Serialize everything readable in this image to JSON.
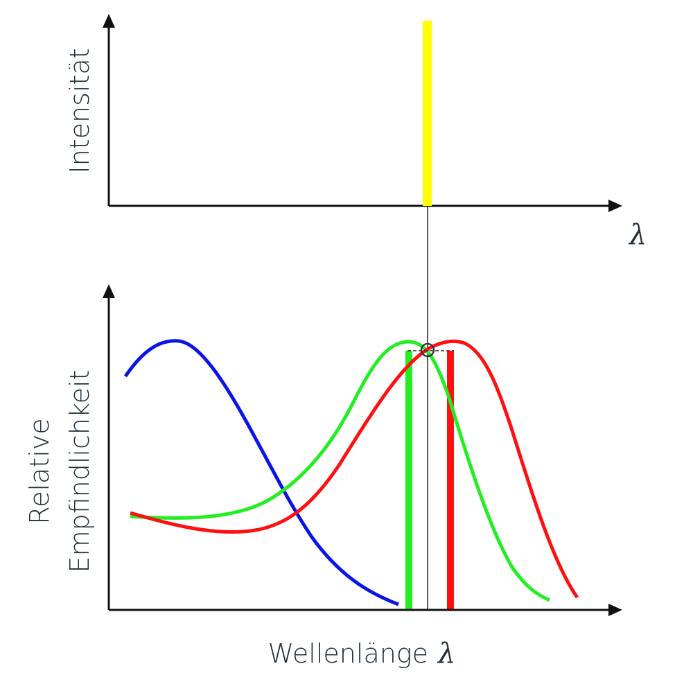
{
  "top_plot": {
    "ylabel": "Intensität",
    "xlabel": "λ"
  },
  "bottom_plot": {
    "ylabel_line1": "Relative",
    "ylabel_line2": "Empfindlichkeit",
    "xlabel": "Wellenlänge",
    "xlabel_symbol": "λ"
  },
  "colors": {
    "axis": "#111111",
    "blue": "#0a14e6",
    "green": "#22ee22",
    "red": "#ff1010",
    "yellow": "#ffff00",
    "text": "#22313c"
  }
}
